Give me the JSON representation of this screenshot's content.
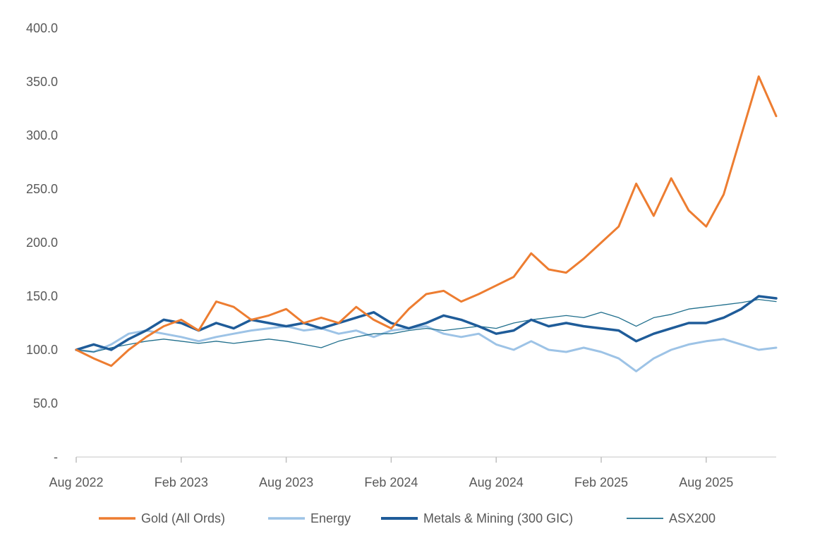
{
  "chart_data": {
    "type": "line",
    "title": "",
    "xlabel": "",
    "ylabel": "",
    "ylim": [
      0,
      400
    ],
    "y_ticks": [
      0,
      50,
      100,
      150,
      200,
      250,
      300,
      350,
      400
    ],
    "y_tick_labels": [
      "-",
      "50.0",
      "100.0",
      "150.0",
      "200.0",
      "250.0",
      "300.0",
      "350.0",
      "400.0"
    ],
    "x_tick_labels": [
      "Aug 2022",
      "Feb 2023",
      "Aug 2023",
      "Feb 2024",
      "Aug 2024",
      "Feb 2025",
      "Aug 2025"
    ],
    "x_range_months": [
      "Aug 2022",
      "Dec 2025"
    ],
    "grid": false,
    "legend_position": "bottom",
    "series": [
      {
        "name": "Gold (All Ords)",
        "color": "#ED7D31",
        "x": [
          "Aug 2022",
          "Sep 2022",
          "Oct 2022",
          "Nov 2022",
          "Dec 2022",
          "Jan 2023",
          "Feb 2023",
          "Mar 2023",
          "Apr 2023",
          "May 2023",
          "Jun 2023",
          "Jul 2023",
          "Aug 2023",
          "Sep 2023",
          "Oct 2023",
          "Nov 2023",
          "Dec 2023",
          "Jan 2024",
          "Feb 2024",
          "Mar 2024",
          "Apr 2024",
          "May 2024",
          "Jun 2024",
          "Jul 2024",
          "Aug 2024",
          "Sep 2024",
          "Oct 2024",
          "Nov 2024",
          "Dec 2024",
          "Jan 2025",
          "Feb 2025",
          "Mar 2025",
          "Apr 2025",
          "May 2025",
          "Jun 2025",
          "Jul 2025",
          "Aug 2025",
          "Sep 2025",
          "Oct 2025",
          "Nov 2025",
          "Dec 2025"
        ],
        "values": [
          100,
          92,
          85,
          100,
          112,
          122,
          128,
          118,
          145,
          140,
          128,
          132,
          138,
          125,
          130,
          125,
          140,
          128,
          120,
          138,
          152,
          155,
          145,
          152,
          160,
          168,
          190,
          175,
          172,
          185,
          200,
          215,
          255,
          225,
          260,
          230,
          215,
          245,
          300,
          355,
          318
        ]
      },
      {
        "name": "Energy",
        "color": "#9DC3E6",
        "x": [
          "Aug 2022",
          "Sep 2022",
          "Oct 2022",
          "Nov 2022",
          "Dec 2022",
          "Jan 2023",
          "Feb 2023",
          "Mar 2023",
          "Apr 2023",
          "May 2023",
          "Jun 2023",
          "Jul 2023",
          "Aug 2023",
          "Sep 2023",
          "Oct 2023",
          "Nov 2023",
          "Dec 2023",
          "Jan 2024",
          "Feb 2024",
          "Mar 2024",
          "Apr 2024",
          "May 2024",
          "Jun 2024",
          "Jul 2024",
          "Aug 2024",
          "Sep 2024",
          "Oct 2024",
          "Nov 2024",
          "Dec 2024",
          "Jan 2025",
          "Feb 2025",
          "Mar 2025",
          "Apr 2025",
          "May 2025",
          "Jun 2025",
          "Jul 2025",
          "Aug 2025",
          "Sep 2025",
          "Oct 2025",
          "Nov 2025",
          "Dec 2025"
        ],
        "values": [
          100,
          98,
          105,
          115,
          118,
          115,
          112,
          108,
          112,
          115,
          118,
          120,
          122,
          118,
          120,
          115,
          118,
          112,
          118,
          120,
          122,
          115,
          112,
          115,
          105,
          100,
          108,
          100,
          98,
          102,
          98,
          92,
          80,
          92,
          100,
          105,
          108,
          110,
          105,
          100,
          102
        ]
      },
      {
        "name": "Metals & Mining (300 GIC)",
        "color": "#1F5C99",
        "x": [
          "Aug 2022",
          "Sep 2022",
          "Oct 2022",
          "Nov 2022",
          "Dec 2022",
          "Jan 2023",
          "Feb 2023",
          "Mar 2023",
          "Apr 2023",
          "May 2023",
          "Jun 2023",
          "Jul 2023",
          "Aug 2023",
          "Sep 2023",
          "Oct 2023",
          "Nov 2023",
          "Dec 2023",
          "Jan 2024",
          "Feb 2024",
          "Mar 2024",
          "Apr 2024",
          "May 2024",
          "Jun 2024",
          "Jul 2024",
          "Aug 2024",
          "Sep 2024",
          "Oct 2024",
          "Nov 2024",
          "Dec 2024",
          "Jan 2025",
          "Feb 2025",
          "Mar 2025",
          "Apr 2025",
          "May 2025",
          "Jun 2025",
          "Jul 2025",
          "Aug 2025",
          "Sep 2025",
          "Oct 2025",
          "Nov 2025",
          "Dec 2025"
        ],
        "values": [
          100,
          105,
          100,
          110,
          118,
          128,
          125,
          118,
          125,
          120,
          128,
          125,
          122,
          125,
          120,
          125,
          130,
          135,
          125,
          120,
          125,
          132,
          128,
          122,
          115,
          118,
          128,
          122,
          125,
          122,
          120,
          118,
          108,
          115,
          120,
          125,
          125,
          130,
          138,
          150,
          148
        ]
      },
      {
        "name": "ASX200",
        "color": "#1F6E8C",
        "x": [
          "Aug 2022",
          "Sep 2022",
          "Oct 2022",
          "Nov 2022",
          "Dec 2022",
          "Jan 2023",
          "Feb 2023",
          "Mar 2023",
          "Apr 2023",
          "May 2023",
          "Jun 2023",
          "Jul 2023",
          "Aug 2023",
          "Sep 2023",
          "Oct 2023",
          "Nov 2023",
          "Dec 2023",
          "Jan 2024",
          "Feb 2024",
          "Mar 2024",
          "Apr 2024",
          "May 2024",
          "Jun 2024",
          "Jul 2024",
          "Aug 2024",
          "Sep 2024",
          "Oct 2024",
          "Nov 2024",
          "Dec 2024",
          "Jan 2025",
          "Feb 2025",
          "Mar 2025",
          "Apr 2025",
          "May 2025",
          "Jun 2025",
          "Jul 2025",
          "Aug 2025",
          "Sep 2025",
          "Oct 2025",
          "Nov 2025",
          "Dec 2025"
        ],
        "values": [
          100,
          98,
          102,
          105,
          108,
          110,
          108,
          106,
          108,
          106,
          108,
          110,
          108,
          105,
          102,
          108,
          112,
          115,
          115,
          118,
          120,
          118,
          120,
          122,
          120,
          125,
          128,
          130,
          132,
          130,
          135,
          130,
          122,
          130,
          133,
          138,
          140,
          142,
          144,
          147,
          145
        ]
      }
    ]
  }
}
